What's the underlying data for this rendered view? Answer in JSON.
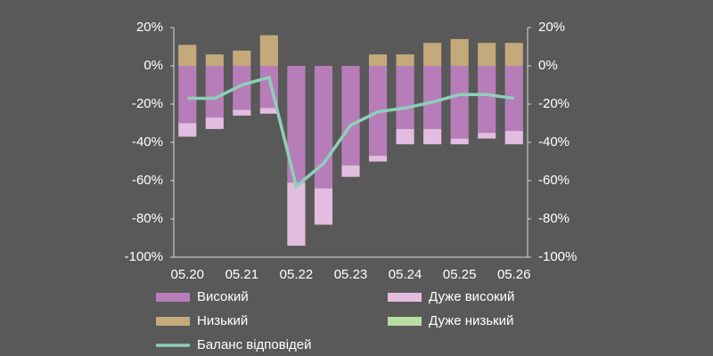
{
  "chart_data": {
    "type": "bar",
    "categories": [
      "05.20",
      null,
      "05.21",
      null,
      "05.22",
      null,
      "05.23",
      null,
      "05.24",
      null,
      "05.25",
      null,
      "05.26"
    ],
    "series": [
      {
        "name": "Високий",
        "color": "#b77db9",
        "values": [
          -30,
          -27,
          -23,
          -22,
          -61,
          -64,
          -52,
          -47,
          -33,
          -33,
          -38,
          -35,
          -34
        ]
      },
      {
        "name": "Дуже високий",
        "color": "#e2bde0",
        "values": [
          -7,
          -6,
          -3,
          -3,
          -33,
          -19,
          -6,
          -3,
          -8,
          -8,
          -3,
          -3,
          -7
        ]
      },
      {
        "name": "Низький",
        "color": "#c4a97b",
        "values": [
          11,
          6,
          8,
          16,
          0,
          0,
          0,
          6,
          6,
          12,
          14,
          12,
          12
        ]
      },
      {
        "name": "Дуже низький",
        "color": "#b9dca0",
        "values": [
          0,
          0,
          0,
          0,
          0,
          0,
          0,
          0,
          0,
          0,
          0,
          0,
          0
        ]
      },
      {
        "name": "Баланс відповідей",
        "color": "#8fcfba",
        "type": "line",
        "values": [
          -17,
          -17,
          -10,
          -6,
          -63,
          -51,
          -31,
          -24,
          -22,
          -19,
          -15,
          -15,
          -17
        ]
      }
    ],
    "ylim": [
      -100,
      20
    ],
    "yticks": [
      {
        "value": -100,
        "label": "-100%"
      },
      {
        "value": -80,
        "label": "-80%"
      },
      {
        "value": -60,
        "label": "-60%"
      },
      {
        "value": -40,
        "label": "-40%"
      },
      {
        "value": -20,
        "label": "-20%"
      },
      {
        "value": 0,
        "label": "0%"
      },
      {
        "value": 20,
        "label": "20%"
      }
    ],
    "y2lim": [
      -100,
      20
    ],
    "y2ticks": [
      {
        "value": -100,
        "label": "-100%"
      },
      {
        "value": -80,
        "label": "-80%"
      },
      {
        "value": -60,
        "label": "-60%"
      },
      {
        "value": -40,
        "label": "-40%"
      },
      {
        "value": -20,
        "label": "-20%"
      },
      {
        "value": 0,
        "label": "0%"
      },
      {
        "value": 20,
        "label": "20%"
      }
    ]
  }
}
